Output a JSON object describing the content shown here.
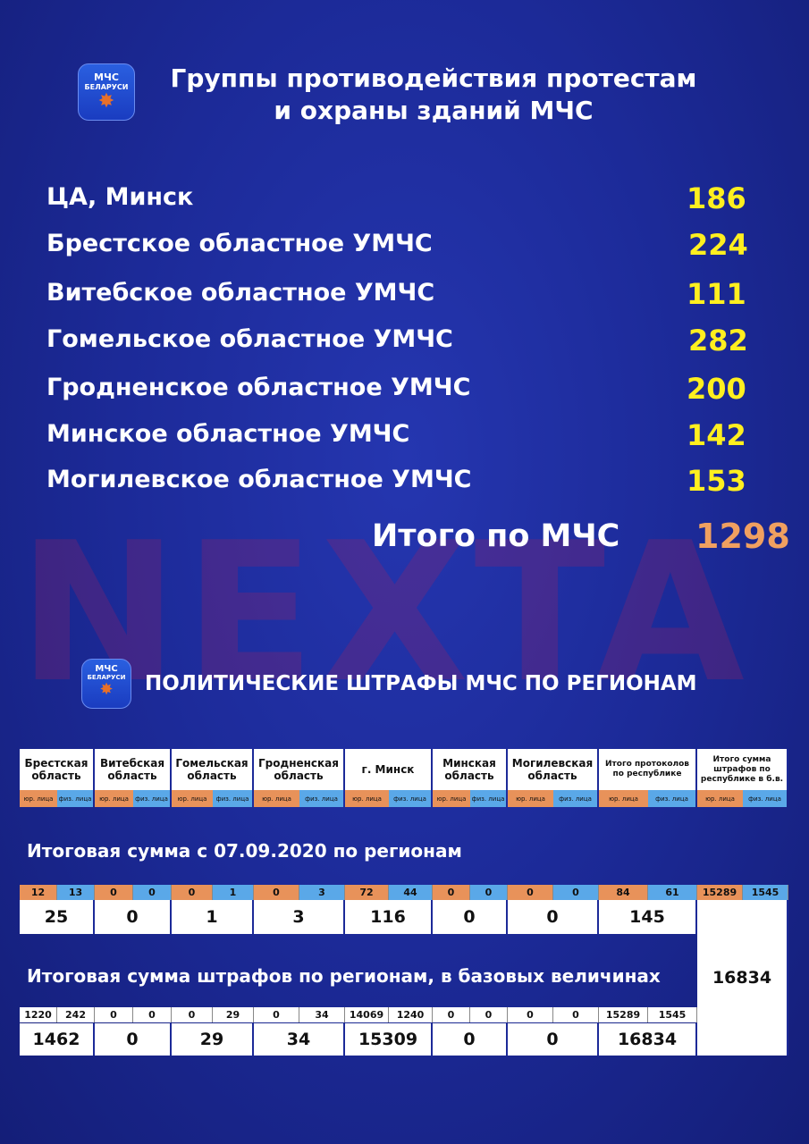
{
  "logo": {
    "line1": "МЧС",
    "line2": "БЕЛАРУСИ"
  },
  "title": {
    "line1": "Группы противодействия протестам",
    "line2": "и охраны зданий МЧС"
  },
  "watermark": "NEXTA",
  "groups": [
    {
      "label": "ЦА, Минск",
      "value": "186"
    },
    {
      "label": "Брестское областное УМЧС",
      "value": "224"
    },
    {
      "label": "Витебское областное УМЧС",
      "value": "111"
    },
    {
      "label": "Гомельское областное УМЧС",
      "value": "282"
    },
    {
      "label": "Гродненское областное УМЧС",
      "value": "200"
    },
    {
      "label": "Минское областное УМЧС",
      "value": "142"
    },
    {
      "label": "Могилевское областное УМЧС",
      "value": "153"
    }
  ],
  "total": {
    "label": "Итого по МЧС",
    "value": "1298"
  },
  "fines_title": "ПОЛИТИЧЕСКИЕ ШТРАФЫ  МЧС ПО РЕГИОНАМ",
  "table": {
    "headers": [
      "Брестская область",
      "Витебская область",
      "Гомельская область",
      "Гродненская область",
      "г. Минск",
      "Минская область",
      "Могилевская область",
      "Итого протоколов по республике",
      "Итого сумма штрафов по республике в б.в."
    ],
    "sub_legal": "юр. лица",
    "sub_phys": "физ. лица",
    "section1": "Итоговая сумма с 07.09.2020 по регионам",
    "section2": "Итоговая сумма штрафов по регионам, в базовых величинах",
    "counts": [
      [
        "12",
        "13",
        "25"
      ],
      [
        "0",
        "0",
        "0"
      ],
      [
        "0",
        "1",
        "1"
      ],
      [
        "0",
        "3",
        "3"
      ],
      [
        "72",
        "44",
        "116"
      ],
      [
        "0",
        "0",
        "0"
      ],
      [
        "0",
        "0",
        "0"
      ],
      [
        "84",
        "61",
        "145"
      ]
    ],
    "sums": [
      [
        "1220",
        "242",
        "1462"
      ],
      [
        "0",
        "0",
        "0"
      ],
      [
        "0",
        "29",
        "29"
      ],
      [
        "0",
        "34",
        "34"
      ],
      [
        "14069",
        "1240",
        "15309"
      ],
      [
        "0",
        "0",
        "0"
      ],
      [
        "0",
        "0",
        "0"
      ],
      [
        "15289",
        "1545",
        "16834"
      ]
    ],
    "republic_total": {
      "legal": "15289",
      "phys": "1545",
      "total": "16834"
    }
  },
  "colors": {
    "legal": "#e8925a",
    "phys": "#5aa8e8",
    "value": "#ffef1f",
    "total": "#f0a060"
  }
}
